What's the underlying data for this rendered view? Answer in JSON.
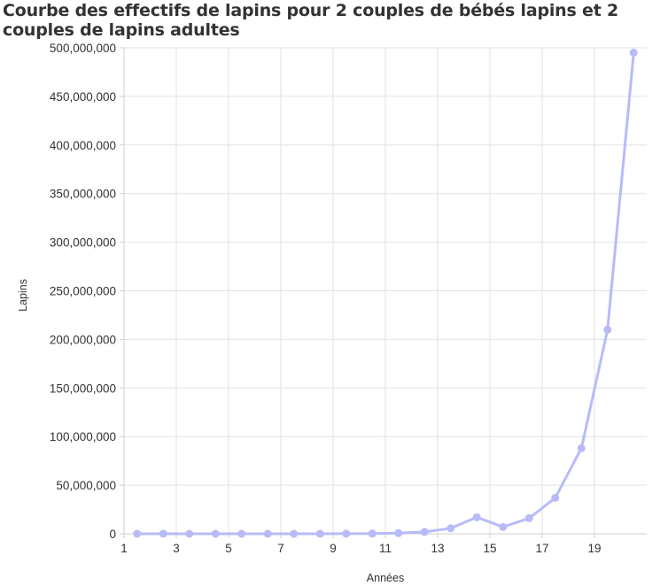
{
  "chart_data": {
    "type": "line",
    "title": "Courbe des effectifs de lapins pour 2 couples de bébés lapins et 2 couples de lapins adultes",
    "xlabel": "Années",
    "ylabel": "Lapins",
    "xlim": [
      1,
      21
    ],
    "ylim": [
      0,
      500000000
    ],
    "x_ticks": [
      1,
      3,
      5,
      7,
      9,
      11,
      13,
      15,
      17,
      19
    ],
    "y_ticks": [
      0,
      50000000,
      100000000,
      150000000,
      200000000,
      250000000,
      300000000,
      350000000,
      400000000,
      450000000,
      500000000
    ],
    "y_tick_labels": [
      "0",
      "50,000,000",
      "100,000,000",
      "150,000,000",
      "200,000,000",
      "250,000,000",
      "300,000,000",
      "350,000,000",
      "400,000,000",
      "450,000,000",
      "500,000,000"
    ],
    "grid": true,
    "legend": "none",
    "series": [
      {
        "color": "#b8bbf8",
        "x": [
          1.5,
          2.5,
          3.5,
          4.5,
          5.5,
          6.5,
          7.5,
          8.5,
          9.5,
          10.5,
          11.5,
          12.5,
          13.5,
          14.5,
          15.5,
          16.5,
          17.5,
          18.5,
          19.5,
          20.5
        ],
        "y": [
          8,
          32,
          96,
          288,
          864,
          2592,
          7776,
          23328,
          69984,
          209952,
          629856,
          1889568,
          5668704,
          17006112,
          7000000,
          16000000,
          37000000,
          88000000,
          210000000,
          495000000
        ]
      }
    ]
  }
}
